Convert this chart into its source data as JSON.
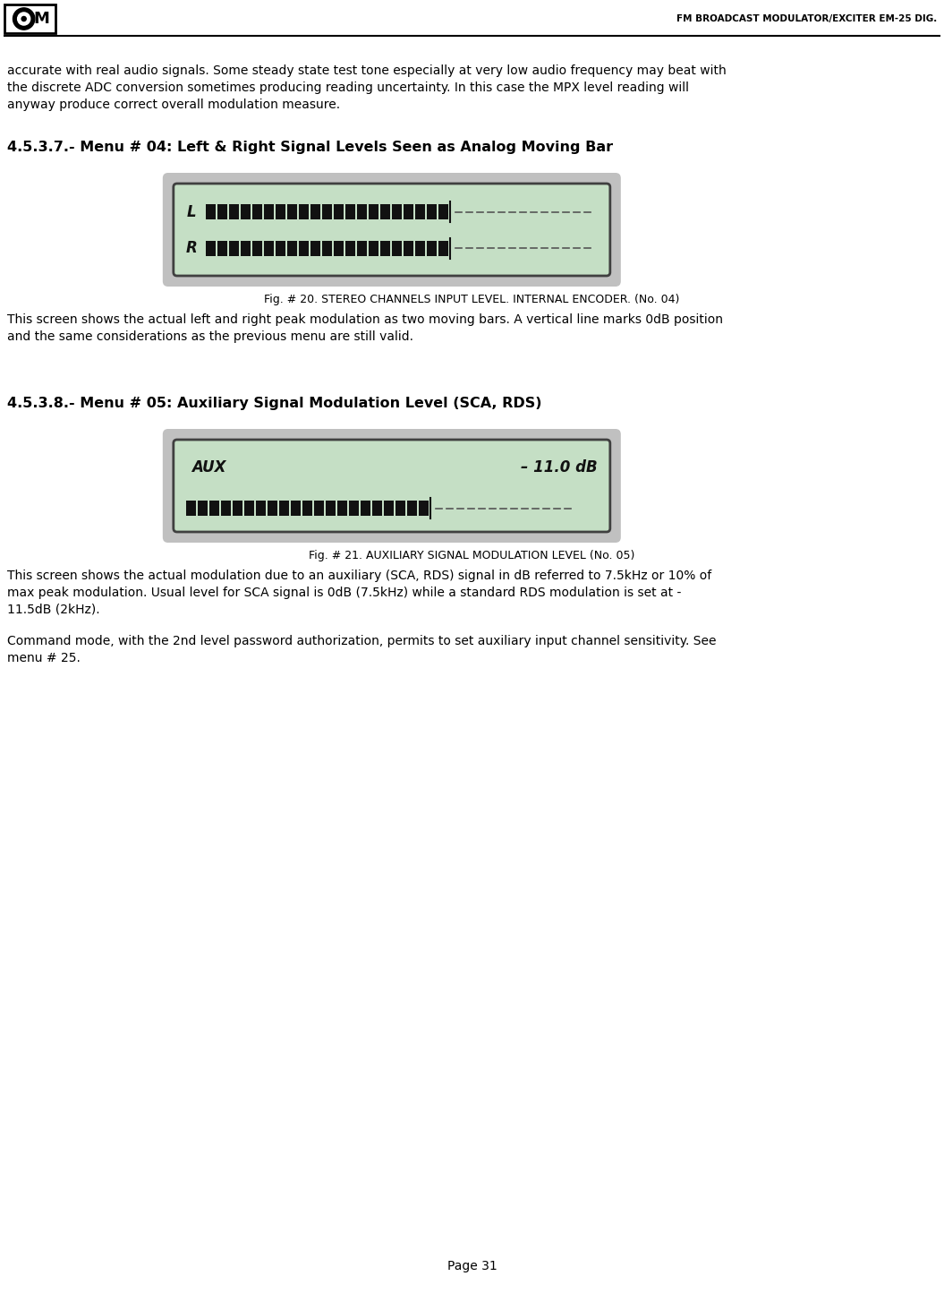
{
  "page_width": 10.55,
  "page_height": 14.54,
  "dpi": 100,
  "bg_color": "#ffffff",
  "header_title": "FM BROADCAST MODULATOR/EXCITER EM-25 DIG.",
  "body_text_1_line1": "accurate with real audio signals. Some steady state test tone especially at very low audio frequency may beat with",
  "body_text_1_line2": "the discrete ADC conversion sometimes producing reading uncertainty. In this case the MPX level reading will",
  "body_text_1_line3": "anyway produce correct overall modulation measure.",
  "section_1_heading": "4.5.3.7.- Menu # 04: Left & Right Signal Levels Seen as Analog Moving Bar",
  "fig20_caption": "Fig. # 20. STEREO CHANNELS INPUT LEVEL. INTERNAL ENCODER. (No. 04)",
  "body_text_2_line1": "This screen shows the actual left and right peak modulation as two moving bars. A vertical line marks 0dB position",
  "body_text_2_line2": "and the same considerations as the previous menu are still valid.",
  "section_2_heading": "4.5.3.8.- Menu # 05: Auxiliary Signal Modulation Level (SCA, RDS)",
  "fig21_caption": "Fig. # 21. AUXILIARY SIGNAL MODULATION LEVEL (No. 05)",
  "body_text_3_line1": "This screen shows the actual modulation due to an auxiliary (SCA, RDS) signal in dB referred to 7.5kHz or 10% of",
  "body_text_3_line2": "max peak modulation. Usual level for SCA signal is 0dB (7.5kHz) while a standard RDS modulation is set at -",
  "body_text_3_line3": "11.5dB (2kHz).",
  "body_text_4_line1": "Command mode, with the 2nd level password authorization, permits to set auxiliary input channel sensitivity. See",
  "body_text_4_line2": "menu # 25.",
  "page_number": "Page 31",
  "display_bg": "#c5dfc5",
  "display_frame_color": "#c0c0c0",
  "display_frame_dark": "#909090",
  "display_screen_border": "#404040",
  "bar_color": "#111111",
  "dash_color": "#555555",
  "label_color": "#111111"
}
